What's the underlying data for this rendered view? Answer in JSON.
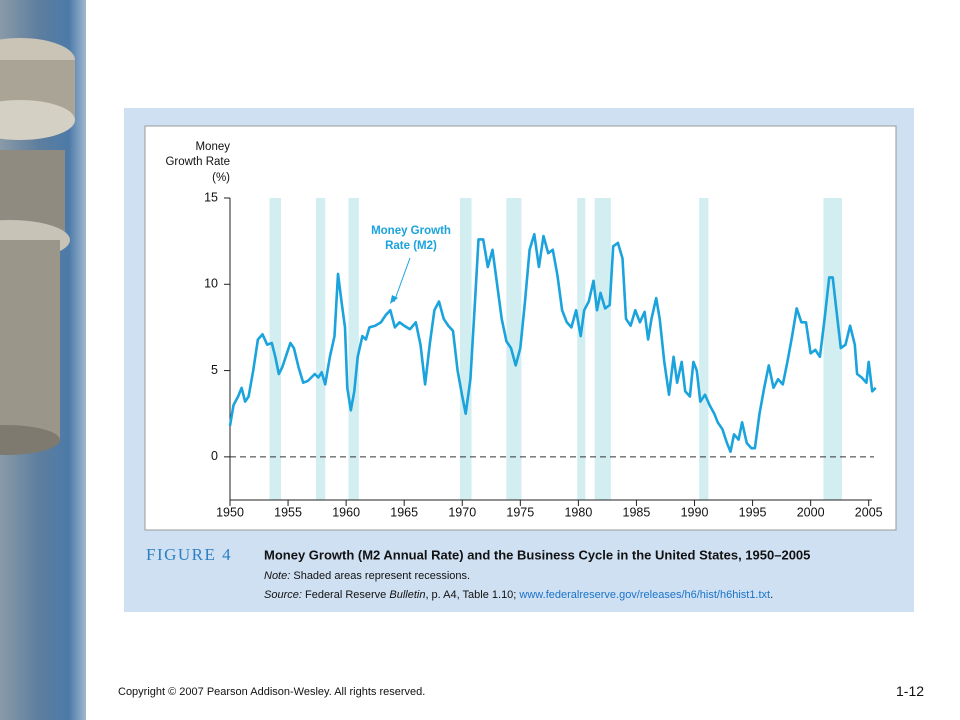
{
  "chart_data": {
    "type": "line",
    "figure_label": "FIGURE 4",
    "title": "Money Growth (M2 Annual Rate) and the Business Cycle in the United States, 1950–2005",
    "note_label": "Note:",
    "note": "Shaded areas represent recessions.",
    "source_label": "Source:",
    "source_pre": "Federal Reserve ",
    "source_italic": "Bulletin",
    "source_mid": ", p. A4, Table 1.10; ",
    "source_link": "www.federalreserve.gov/releases/h6/hist/h6hist1.txt",
    "source_end": ".",
    "y_label": [
      "Money",
      "Growth Rate",
      "(%)"
    ],
    "annotation": [
      "Money Growth",
      "Rate (M2)"
    ],
    "color": "#1aa3dc",
    "recession_color": "#d3eef1",
    "xlim": [
      1950,
      2005.8
    ],
    "ylim": [
      -2.5,
      15
    ],
    "xticks": [
      1950,
      1955,
      1960,
      1965,
      1970,
      1975,
      1980,
      1985,
      1990,
      1995,
      2000,
      2005
    ],
    "yticks": [
      0,
      5,
      10,
      15
    ],
    "zero_line": 0,
    "recessions": [
      [
        1953.4,
        1954.4
      ],
      [
        1957.4,
        1958.2
      ],
      [
        1960.2,
        1961.1
      ],
      [
        1969.8,
        1970.8
      ],
      [
        1973.8,
        1975.1
      ],
      [
        1979.9,
        1980.6
      ],
      [
        1981.4,
        1982.8
      ],
      [
        1990.4,
        1991.2
      ],
      [
        2001.1,
        2002.7
      ]
    ],
    "x": [
      1950.0,
      1950.3,
      1950.7,
      1951.0,
      1951.3,
      1951.6,
      1952.0,
      1952.4,
      1952.8,
      1953.2,
      1953.6,
      1953.9,
      1954.2,
      1954.5,
      1954.9,
      1955.2,
      1955.5,
      1955.9,
      1956.3,
      1956.7,
      1957.0,
      1957.3,
      1957.6,
      1957.9,
      1958.2,
      1958.6,
      1959.0,
      1959.3,
      1959.6,
      1959.9,
      1960.1,
      1960.4,
      1960.7,
      1961.0,
      1961.4,
      1961.7,
      1962.0,
      1962.5,
      1963.0,
      1963.4,
      1963.8,
      1964.2,
      1964.6,
      1965.0,
      1965.5,
      1966.0,
      1966.4,
      1966.8,
      1967.2,
      1967.6,
      1968.0,
      1968.4,
      1968.8,
      1969.2,
      1969.6,
      1970.0,
      1970.3,
      1970.7,
      1971.1,
      1971.4,
      1971.8,
      1972.2,
      1972.6,
      1973.0,
      1973.4,
      1973.8,
      1974.2,
      1974.6,
      1975.0,
      1975.4,
      1975.8,
      1976.2,
      1976.6,
      1977.0,
      1977.4,
      1977.8,
      1978.2,
      1978.6,
      1979.0,
      1979.4,
      1979.8,
      1980.2,
      1980.5,
      1980.9,
      1981.3,
      1981.6,
      1981.9,
      1982.3,
      1982.7,
      1983.0,
      1983.4,
      1983.8,
      1984.1,
      1984.5,
      1984.9,
      1985.3,
      1985.7,
      1986.0,
      1986.3,
      1986.7,
      1987.0,
      1987.4,
      1987.8,
      1988.2,
      1988.5,
      1988.9,
      1989.2,
      1989.6,
      1989.9,
      1990.2,
      1990.5,
      1990.9,
      1991.3,
      1991.7,
      1992.0,
      1992.4,
      1992.8,
      1993.1,
      1993.4,
      1993.8,
      1994.1,
      1994.5,
      1994.9,
      1995.2,
      1995.6,
      1996.0,
      1996.4,
      1996.8,
      1997.2,
      1997.6,
      1998.0,
      1998.4,
      1998.8,
      1999.2,
      1999.6,
      2000.0,
      2000.4,
      2000.8,
      2001.2,
      2001.6,
      2001.9,
      2002.3,
      2002.6,
      2003.0,
      2003.4,
      2003.8,
      2004.0,
      2004.4,
      2004.8,
      2005.0,
      2005.3,
      2005.6
    ],
    "values": [
      1.8,
      3.0,
      3.5,
      4.0,
      3.2,
      3.5,
      5.0,
      6.8,
      7.1,
      6.5,
      6.6,
      5.8,
      4.8,
      5.2,
      6.0,
      6.6,
      6.3,
      5.2,
      4.3,
      4.4,
      4.6,
      4.8,
      4.6,
      4.9,
      4.2,
      5.8,
      7.0,
      10.6,
      9.0,
      7.5,
      4.0,
      2.7,
      3.8,
      5.8,
      7.0,
      6.8,
      7.5,
      7.6,
      7.8,
      8.2,
      8.5,
      7.5,
      7.8,
      7.6,
      7.4,
      7.8,
      6.5,
      4.2,
      6.5,
      8.5,
      9.0,
      8.0,
      7.6,
      7.3,
      5.0,
      3.5,
      2.5,
      4.5,
      9.0,
      12.6,
      12.6,
      11.0,
      12.0,
      10.0,
      8.0,
      6.7,
      6.3,
      5.3,
      6.3,
      9.0,
      12.0,
      12.9,
      11.0,
      12.8,
      11.8,
      12.0,
      10.5,
      8.5,
      7.8,
      7.5,
      8.5,
      7.0,
      8.5,
      9.0,
      10.2,
      8.5,
      9.5,
      8.6,
      8.8,
      12.2,
      12.4,
      11.5,
      8.0,
      7.6,
      8.5,
      7.8,
      8.4,
      6.8,
      8.0,
      9.2,
      8.0,
      5.5,
      3.6,
      5.8,
      4.3,
      5.5,
      3.8,
      3.5,
      5.5,
      5.0,
      3.2,
      3.6,
      3.0,
      2.5,
      2.0,
      1.6,
      0.8,
      0.3,
      1.3,
      1.0,
      2.0,
      0.8,
      0.5,
      0.5,
      2.5,
      4.0,
      5.3,
      4.0,
      4.5,
      4.2,
      5.5,
      7.0,
      8.6,
      7.8,
      7.8,
      6.0,
      6.2,
      5.8,
      8.0,
      10.4,
      10.4,
      8.0,
      6.3,
      6.5,
      7.6,
      6.5,
      4.8,
      4.6,
      4.3,
      5.5,
      3.8,
      4.0
    ]
  },
  "footer": {
    "copyright": "Copyright © 2007 Pearson Addison-Wesley. All rights reserved.",
    "page": "1-12"
  }
}
